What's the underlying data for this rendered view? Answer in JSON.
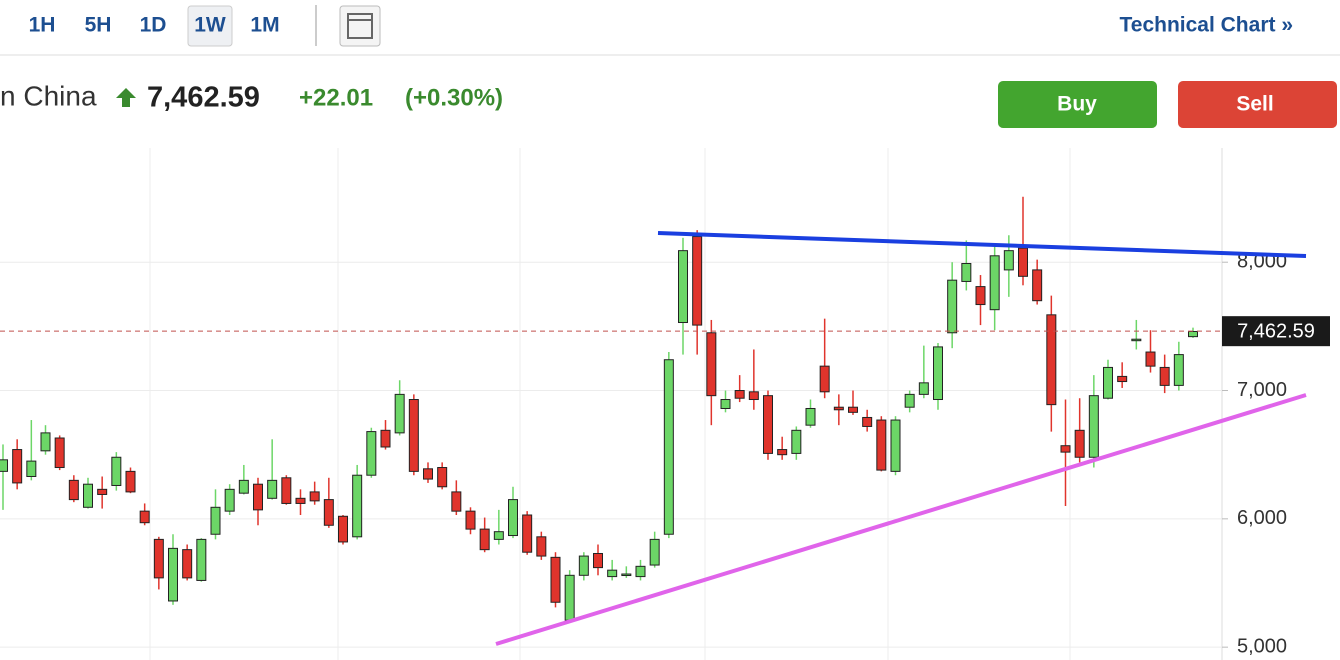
{
  "toolbar": {
    "timeframes": [
      "1H",
      "5H",
      "1D",
      "1W",
      "1M"
    ],
    "selected": "1W",
    "link": "Technical Chart »"
  },
  "header": {
    "name": "n China",
    "change": "+22.01",
    "change_percent": "(+0.30%)"
  },
  "buttons": {
    "buy": "Buy",
    "sell": "Sell"
  },
  "chart_data": {
    "type": "candlestick",
    "open": [
      6370,
      6540,
      6330,
      6530,
      6630,
      6300,
      6090,
      6230,
      6260,
      6370,
      6060,
      5840,
      5360,
      5760,
      5520,
      5880,
      6060,
      6200,
      6270,
      6160,
      6320,
      6160,
      6210,
      6150,
      6020,
      5860,
      6340,
      6690,
      6670,
      6930,
      6390,
      6400,
      6210,
      6060,
      5920,
      5840,
      5870,
      6030,
      5860,
      5700,
      5210,
      5560,
      5730,
      5550,
      5560,
      5550,
      5640,
      5880,
      7530,
      8200,
      7450,
      6860,
      7000,
      6990,
      6960,
      6540,
      6510,
      6730,
      7190,
      6870,
      6870,
      6790,
      6770,
      6370,
      6870,
      6970,
      6930,
      7450,
      7850,
      7810,
      7630,
      7940,
      8110,
      7940,
      7590,
      6570,
      6690,
      6480,
      6940,
      7110,
      7390,
      7300,
      7180,
      7040,
      7420
    ],
    "high": [
      6580,
      6620,
      6770,
      6730,
      6650,
      6340,
      6320,
      6330,
      6520,
      6400,
      6120,
      5860,
      5880,
      5800,
      5850,
      6230,
      6270,
      6420,
      6320,
      6620,
      6340,
      6230,
      6290,
      6320,
      6030,
      6420,
      6710,
      6770,
      7080,
      6970,
      6440,
      6440,
      6300,
      6090,
      6010,
      6070,
      6250,
      6060,
      5900,
      5740,
      5600,
      5740,
      5800,
      5680,
      5630,
      5680,
      5900,
      7300,
      8190,
      8250,
      7550,
      7000,
      7120,
      7320,
      7000,
      6640,
      6720,
      6930,
      7560,
      6970,
      7000,
      6850,
      6800,
      6800,
      7000,
      7350,
      7370,
      8000,
      8170,
      7900,
      8130,
      8210,
      8510,
      8020,
      7740,
      6930,
      6940,
      7120,
      7240,
      7220,
      7550,
      7470,
      7280,
      7380,
      7490
    ],
    "low": [
      6070,
      6230,
      6300,
      6500,
      6380,
      6130,
      6080,
      6080,
      6220,
      6200,
      5950,
      5450,
      5330,
      5520,
      5510,
      5840,
      6030,
      6190,
      5950,
      6150,
      6110,
      6030,
      6110,
      5930,
      5800,
      5840,
      6320,
      6540,
      6650,
      6340,
      6280,
      6230,
      6030,
      5880,
      5740,
      5800,
      5850,
      5720,
      5680,
      5310,
      5200,
      5520,
      5560,
      5520,
      5540,
      5520,
      5620,
      5850,
      7280,
      7280,
      6730,
      6830,
      6910,
      6850,
      6460,
      6460,
      6460,
      6710,
      6940,
      6730,
      6810,
      6680,
      6370,
      6340,
      6830,
      6940,
      6850,
      7330,
      7780,
      7510,
      7470,
      7730,
      7820,
      7670,
      6680,
      6100,
      6440,
      6400,
      6930,
      7020,
      7320,
      7140,
      6980,
      7000,
      7410
    ],
    "close": [
      6460,
      6280,
      6450,
      6670,
      6400,
      6150,
      6270,
      6190,
      6480,
      6210,
      5970,
      5540,
      5770,
      5540,
      5840,
      6090,
      6230,
      6300,
      6070,
      6300,
      6120,
      6120,
      6140,
      5950,
      5820,
      6340,
      6680,
      6560,
      6970,
      6370,
      6310,
      6250,
      6060,
      5920,
      5760,
      5900,
      6150,
      5740,
      5710,
      5350,
      5560,
      5710,
      5620,
      5600,
      5570,
      5630,
      5840,
      7240,
      8090,
      7510,
      6960,
      6930,
      6940,
      6930,
      6510,
      6500,
      6690,
      6860,
      6990,
      6850,
      6830,
      6720,
      6380,
      6770,
      6970,
      7060,
      7340,
      7860,
      7990,
      7670,
      8050,
      8090,
      7890,
      7700,
      6890,
      6520,
      6480,
      6960,
      7180,
      7070,
      7400,
      7190,
      7040,
      7280,
      7460
    ],
    "up_color": "#6cd667",
    "down_color": "#e0342c",
    "ylim": [
      4900,
      8890
    ],
    "yticks": [
      {
        "value": 5000,
        "label": "5,000"
      },
      {
        "value": 6000,
        "label": "6,000"
      },
      {
        "value": 7000,
        "label": "7,000"
      },
      {
        "value": 8000,
        "label": "8,000"
      }
    ],
    "grid": true,
    "last_price": {
      "value": 7462.59,
      "label": "7,462.59"
    }
  }
}
